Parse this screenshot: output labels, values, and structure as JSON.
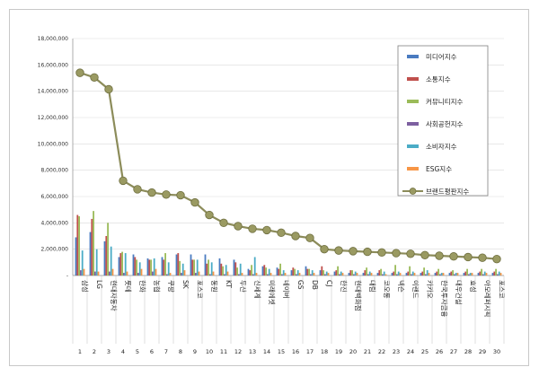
{
  "chart_data": {
    "type": "bar",
    "categories": [
      "삼성",
      "LG",
      "현대자동차",
      "롯데",
      "한화",
      "농협",
      "쿠팡",
      "SK",
      "포스코",
      "동원",
      "KT",
      "두산",
      "신세계",
      "미래에셋",
      "네이버",
      "GS",
      "DB",
      "CJ",
      "한진",
      "현대백화점",
      "대림",
      "코오롱",
      "넥슨",
      "이랜드",
      "카카오",
      "한국투자금융",
      "대우건설",
      "효성",
      "아모레퍼시픽",
      "포스코"
    ],
    "ranks": [
      "1",
      "2",
      "3",
      "4",
      "5",
      "6",
      "7",
      "8",
      "9",
      "10",
      "11",
      "12",
      "13",
      "14",
      "15",
      "16",
      "17",
      "18",
      "19",
      "20",
      "21",
      "22",
      "23",
      "24",
      "25",
      "26",
      "27",
      "28",
      "29",
      "30"
    ],
    "ylim": [
      0,
      18000000
    ],
    "yticks": [
      0,
      2000000,
      4000000,
      6000000,
      8000000,
      10000000,
      12000000,
      14000000,
      16000000,
      18000000
    ],
    "ytick_labels": [
      "-",
      "2,000,000",
      "4,000,000",
      "6,000,000",
      "8,000,000",
      "10,000,000",
      "12,000,000",
      "14,000,000",
      "16,000,000",
      "18,000,000"
    ],
    "grid": true,
    "legend_position": "top-right",
    "series": [
      {
        "name": "미디어지수",
        "type": "bar",
        "color": "#4a7bc0",
        "values": [
          2900000,
          3300000,
          2600000,
          1400000,
          1600000,
          1300000,
          1400000,
          1600000,
          1600000,
          1600000,
          1300000,
          1200000,
          500000,
          700000,
          600000,
          400000,
          700000,
          400000,
          300000,
          200000,
          200000,
          200000,
          200000,
          200000,
          200000,
          200000,
          200000,
          200000,
          200000,
          200000
        ]
      },
      {
        "name": "소통지수",
        "type": "bar",
        "color": "#c0504d",
        "values": [
          4600000,
          4300000,
          3000000,
          1700000,
          1400000,
          1200000,
          1200000,
          1700000,
          1200000,
          900000,
          900000,
          1000000,
          400000,
          800000,
          500000,
          600000,
          500000,
          700000,
          400000,
          400000,
          400000,
          400000,
          300000,
          300000,
          300000,
          300000,
          300000,
          300000,
          300000,
          300000
        ]
      },
      {
        "name": "커뮤니티지수",
        "type": "bar",
        "color": "#9bbb59",
        "values": [
          4500000,
          4900000,
          4000000,
          1800000,
          1200000,
          1200000,
          1700000,
          1100000,
          1200000,
          1200000,
          700000,
          600000,
          800000,
          600000,
          900000,
          500000,
          500000,
          400000,
          700000,
          400000,
          600000,
          500000,
          800000,
          700000,
          600000,
          500000,
          400000,
          500000,
          500000,
          500000
        ]
      },
      {
        "name": "사회공헌지수",
        "type": "bar",
        "color": "#7d60a0",
        "values": [
          400000,
          300000,
          300000,
          200000,
          200000,
          300000,
          100000,
          200000,
          200000,
          100000,
          100000,
          100000,
          100000,
          100000,
          100000,
          100000,
          100000,
          100000,
          100000,
          100000,
          100000,
          100000,
          100000,
          100000,
          100000,
          100000,
          100000,
          100000,
          100000,
          100000
        ]
      },
      {
        "name": "소비자지수",
        "type": "bar",
        "color": "#4bacc6",
        "values": [
          1900000,
          2000000,
          2200000,
          1700000,
          1000000,
          1300000,
          1000000,
          900000,
          1200000,
          1000000,
          800000,
          900000,
          1400000,
          500000,
          400000,
          400000,
          400000,
          300000,
          300000,
          300000,
          300000,
          300000,
          300000,
          300000,
          400000,
          200000,
          200000,
          200000,
          300000,
          300000
        ]
      },
      {
        "name": "ESG지수",
        "type": "bar",
        "color": "#f79646",
        "values": [
          500000,
          300000,
          500000,
          300000,
          500000,
          500000,
          200000,
          400000,
          300000,
          300000,
          300000,
          200000,
          200000,
          200000,
          200000,
          200000,
          200000,
          200000,
          200000,
          200000,
          200000,
          100000,
          200000,
          200000,
          200000,
          200000,
          200000,
          200000,
          200000,
          200000
        ]
      },
      {
        "name": "브랜드평판지수",
        "type": "line",
        "color": "#8c8c5a",
        "values": [
          15400000,
          15050000,
          14150000,
          7200000,
          6550000,
          6300000,
          6150000,
          6100000,
          5550000,
          4600000,
          4000000,
          3750000,
          3550000,
          3450000,
          3250000,
          3000000,
          2850000,
          2000000,
          1900000,
          1850000,
          1800000,
          1750000,
          1700000,
          1650000,
          1550000,
          1500000,
          1450000,
          1400000,
          1350000,
          1250000
        ]
      }
    ]
  }
}
